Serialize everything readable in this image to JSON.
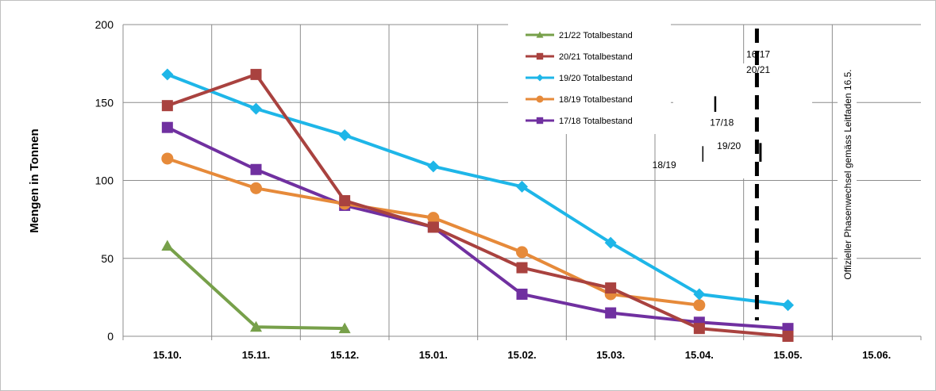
{
  "chart_data": {
    "type": "line",
    "ylabel": "Mengen in Tonnen",
    "ylim": [
      0,
      200
    ],
    "yticks": [
      0,
      50,
      100,
      150,
      200
    ],
    "categories": [
      "15.10.",
      "15.11.",
      "15.12.",
      "15.01.",
      "15.02.",
      "15.03.",
      "15.04.",
      "15.05.",
      "15.06."
    ],
    "grid": true,
    "legend_position": "top-center",
    "series": [
      {
        "name": "21/22 Totalbestand",
        "color": "#77a04a",
        "marker": "triangle",
        "values": [
          58,
          6,
          5,
          null,
          null,
          null,
          null,
          null,
          null
        ]
      },
      {
        "name": "20/21 Totalbestand",
        "color": "#a9423f",
        "marker": "square",
        "values": [
          148,
          168,
          87,
          70,
          44,
          31,
          5,
          0,
          null
        ]
      },
      {
        "name": "19/20 Totalbestand",
        "color": "#1eb6e8",
        "marker": "diamond",
        "values": [
          168,
          146,
          129,
          109,
          96,
          60,
          27,
          20,
          null
        ]
      },
      {
        "name": "18/19 Totalbestand",
        "color": "#e68a3a",
        "marker": "circle",
        "values": [
          114,
          95,
          85,
          76,
          54,
          27,
          20,
          null,
          null
        ]
      },
      {
        "name": "17/18 Totalbestand",
        "color": "#7030a0",
        "marker": "square",
        "values": [
          134,
          107,
          84,
          70,
          27,
          15,
          9,
          5,
          null
        ]
      }
    ],
    "annotations": [
      {
        "label": "16/17",
        "x": 7.03,
        "y": 179
      },
      {
        "label": "20/21",
        "x": 7.03,
        "y": 169
      },
      {
        "label": "17/18",
        "x": 6.62,
        "y": 135
      },
      {
        "label": "19/20",
        "x": 6.7,
        "y": 120
      },
      {
        "label": "18/19",
        "x": 5.97,
        "y": 108
      }
    ],
    "phase_line": {
      "x": 7.15,
      "label": "Offizieller Phasenwechsel gemäss Leitfaden 16.5."
    }
  }
}
